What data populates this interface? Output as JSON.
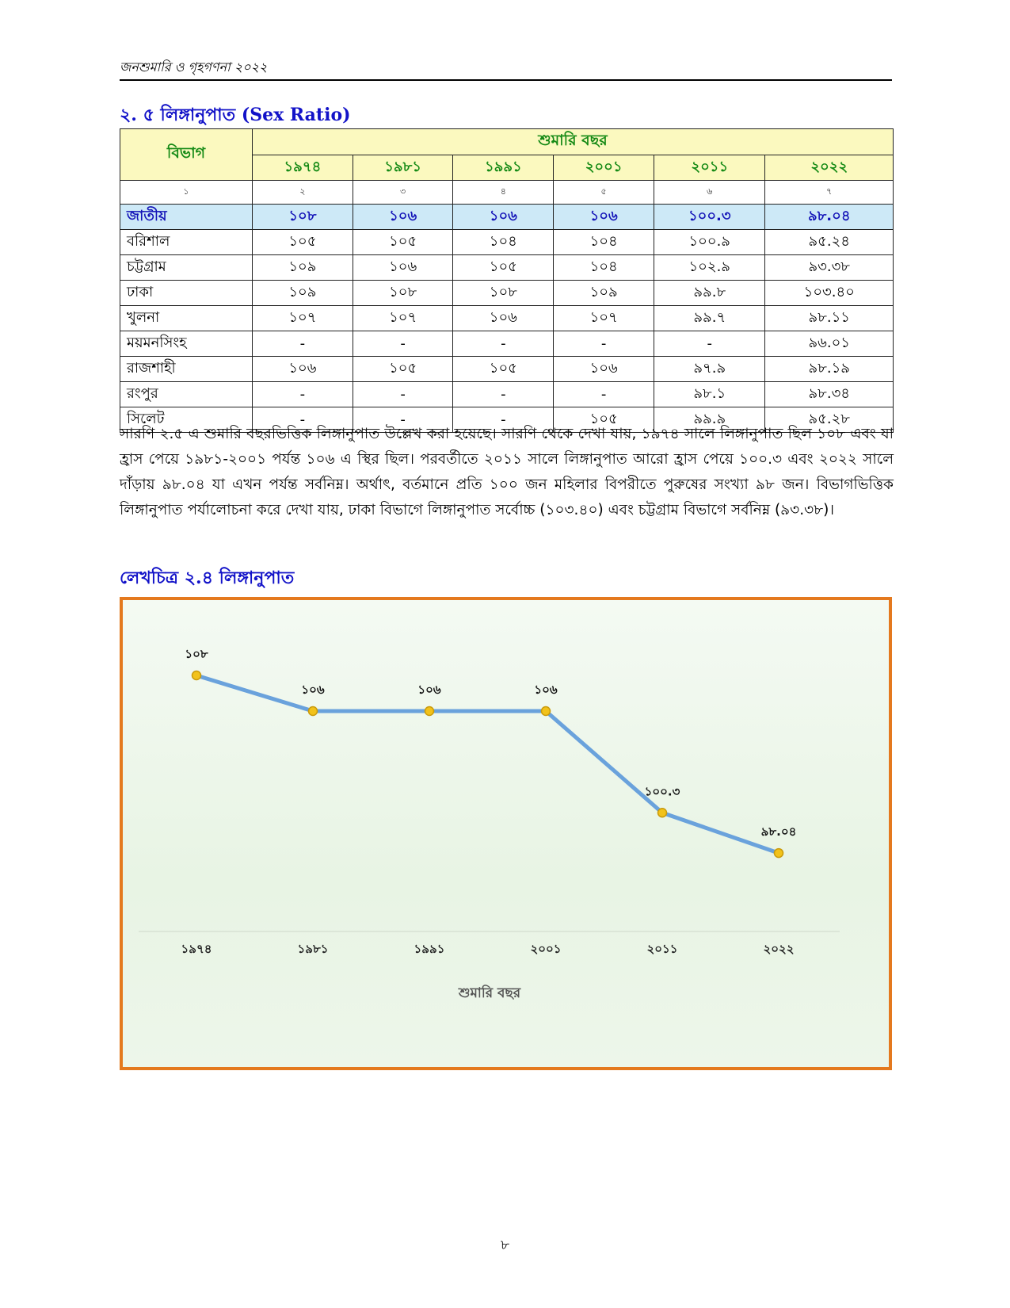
{
  "header": {
    "running_title": "জনশুমারি ও গৃহগণনা ২০২২"
  },
  "section": {
    "title": "২. ৫ লিঙ্গানুপাত (Sex Ratio)"
  },
  "table": {
    "division_header": "বিভাগ",
    "group_header": "শুমারি বছর",
    "years": [
      "১৯৭৪",
      "১৯৮১",
      "১৯৯১",
      "২০০১",
      "২০১১",
      "২০২২"
    ],
    "column_numbers": [
      "১",
      "২",
      "৩",
      "৪",
      "৫",
      "৬",
      "৭"
    ],
    "rows": [
      {
        "division": "জাতীয়",
        "values": [
          "১০৮",
          "১০৬",
          "১০৬",
          "১০৬",
          "১০০.৩",
          "৯৮.০৪"
        ]
      },
      {
        "division": "বরিশাল",
        "values": [
          "১০৫",
          "১০৫",
          "১০৪",
          "১০৪",
          "১০০.৯",
          "৯৫.২৪"
        ]
      },
      {
        "division": "চট্টগ্রাম",
        "values": [
          "১০৯",
          "১০৬",
          "১০৫",
          "১০৪",
          "১০২.৯",
          "৯৩.৩৮"
        ]
      },
      {
        "division": "ঢাকা",
        "values": [
          "১০৯",
          "১০৮",
          "১০৮",
          "১০৯",
          "৯৯.৮",
          "১০৩.৪০"
        ]
      },
      {
        "division": "খুলনা",
        "values": [
          "১০৭",
          "১০৭",
          "১০৬",
          "১০৭",
          "৯৯.৭",
          "৯৮.১১"
        ]
      },
      {
        "division": "ময়মনসিংহ",
        "values": [
          "-",
          "-",
          "-",
          "-",
          "-",
          "৯৬.০১"
        ]
      },
      {
        "division": "রাজশাহী",
        "values": [
          "১০৬",
          "১০৫",
          "১০৫",
          "১০৬",
          "৯৭.৯",
          "৯৮.১৯"
        ]
      },
      {
        "division": "রংপুর",
        "values": [
          "-",
          "-",
          "-",
          "-",
          "৯৮.১",
          "৯৮.৩৪"
        ]
      },
      {
        "division": "সিলেট",
        "values": [
          "-",
          "-",
          "-",
          "১০৫",
          "৯৯.৯",
          "৯৫.২৮"
        ]
      }
    ]
  },
  "paragraph": "সারণি ২.৫ এ শুমারি বছরভিত্তিক লিঙ্গানুপাত উল্লেখ করা হয়েছে। সারণি থেকে দেখা যায়, ১৯৭৪ সালে লিঙ্গানুপাত ছিল ১০৮ এবং যা হ্রাস পেয়ে ১৯৮১-২০০১ পর্যন্ত ১০৬ এ স্থির ছিল। পরবর্তীতে ২০১১ সালে লিঙ্গানুপাত আরো হ্রাস পেয়ে ১০০.৩ এবং ২০২২ সালে দাঁড়ায় ৯৮.০৪ যা এখন পর্যন্ত সর্বনিম্ন। অর্থাৎ, বর্তমানে প্রতি ১০০ জন মহিলার বিপরীতে পুরুষের সংখ্যা ৯৮ জন। বিভাগভিত্তিক লিঙ্গানুপাত পর্যালোচনা করে দেখা যায়, ঢাকা বিভাগে লিঙ্গানুপাত সর্বোচ্চ (১০৩.৪০) এবং চট্টগ্রাম বিভাগে সর্বনিম্ন (৯৩.৩৮)।",
  "figure": {
    "title": "লেখচিত্র ২.৪ লিঙ্গানুপাত"
  },
  "chart_data": {
    "type": "line",
    "title": "",
    "xlabel": "শুমারি বছর",
    "ylabel": "",
    "categories": [
      "১৯৭৪",
      "১৯৮১",
      "১৯৯১",
      "২০০১",
      "২০১১",
      "২০২২"
    ],
    "values": [
      108,
      106,
      106,
      106,
      100.3,
      98.04
    ],
    "data_labels": [
      "১০৮",
      "১০৬",
      "১০৬",
      "১০৬",
      "১০০.৩",
      "৯৮.০৪"
    ],
    "ylim": [
      94,
      110
    ],
    "grid": false,
    "legend": "none",
    "line_color": "#6aa2dc",
    "marker_color": "#f2c21a",
    "frame_color": "#e4791e"
  },
  "page": {
    "number": "৮"
  }
}
